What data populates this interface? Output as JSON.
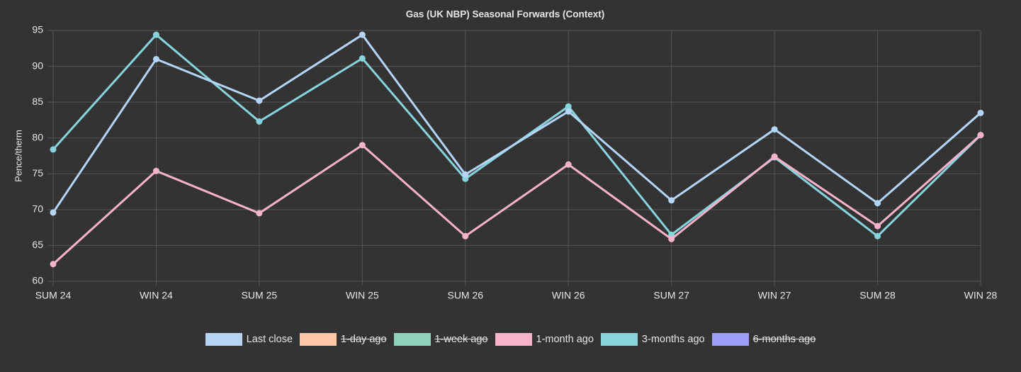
{
  "chart_data": {
    "type": "line",
    "title": "Gas (UK NBP) Seasonal Forwards (Context)",
    "y_label": "Pence/therm",
    "categories": [
      "SUM 24",
      "WIN 24",
      "SUM 25",
      "WIN 25",
      "SUM 26",
      "WIN 26",
      "SUM 27",
      "WIN 27",
      "SUM 28",
      "WIN 28"
    ],
    "ylim": [
      60,
      95
    ],
    "yticks": [
      60,
      65,
      70,
      75,
      80,
      85,
      90,
      95
    ],
    "grid": true,
    "legend": "bottom",
    "series": [
      {
        "name": "Last close",
        "color": "#b5d5f7",
        "values": [
          69.6,
          91.0,
          85.2,
          94.4,
          74.9,
          83.7,
          71.3,
          81.2,
          70.9,
          83.5
        ]
      },
      {
        "name": "1-day ago",
        "color": "#ffc7a8",
        "hidden": true
      },
      {
        "name": "1-week ago",
        "color": "#8fd3bf",
        "hidden": true
      },
      {
        "name": "1-month ago",
        "color": "#f7b3cb",
        "values": [
          62.4,
          75.4,
          69.5,
          79.0,
          66.3,
          76.3,
          65.9,
          77.4,
          67.7,
          80.4
        ]
      },
      {
        "name": "3-months ago",
        "color": "#88d4dd",
        "values": [
          78.4,
          94.4,
          82.3,
          91.1,
          74.3,
          84.4,
          66.5,
          77.3,
          66.3,
          80.4
        ]
      },
      {
        "name": "6-months ago",
        "color": "#9d9ef5",
        "hidden": true
      }
    ]
  }
}
